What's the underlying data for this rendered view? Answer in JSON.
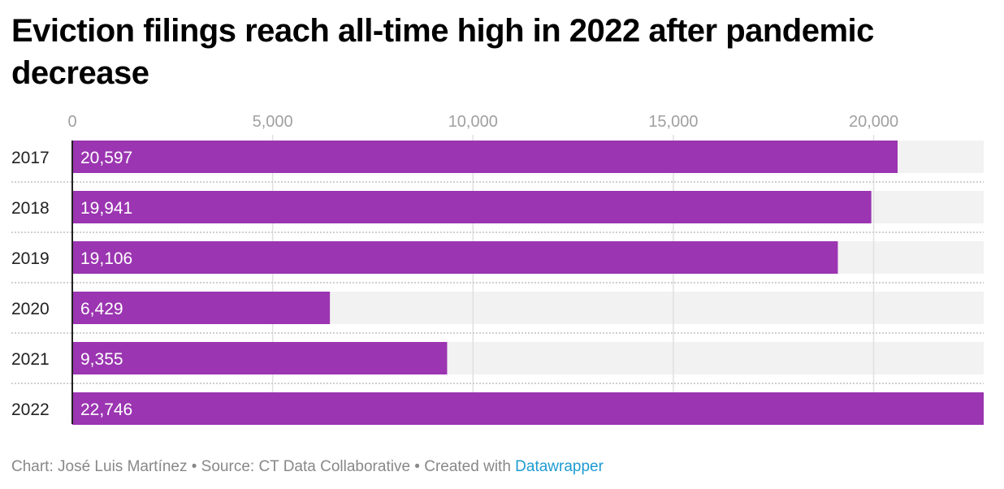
{
  "chart_data": {
    "type": "bar",
    "orientation": "horizontal",
    "title": "Eviction filings reach all-time high in 2022 after pandemic decrease",
    "categories": [
      "2017",
      "2018",
      "2019",
      "2020",
      "2021",
      "2022"
    ],
    "values": [
      20597,
      19941,
      19106,
      6429,
      9355,
      22746
    ],
    "value_labels": [
      "20,597",
      "19,941",
      "19,106",
      "6,429",
      "9,355",
      "22,746"
    ],
    "xlim": [
      0,
      22746
    ],
    "x_ticks": [
      0,
      5000,
      10000,
      15000,
      20000
    ],
    "x_tick_labels": [
      "0",
      "5,000",
      "10,000",
      "15,000",
      "20,000"
    ],
    "xlabel": "",
    "ylabel": "",
    "grid": true,
    "colors": {
      "bar": "#9b35b1",
      "track": "#f2f2f2",
      "grid": "#e0e0e0",
      "tick_text": "#a0a0a0"
    }
  },
  "footer": {
    "text": "Chart: José Luis Martínez • Source: CT Data Collaborative • Created with ",
    "link": "Datawrapper"
  }
}
